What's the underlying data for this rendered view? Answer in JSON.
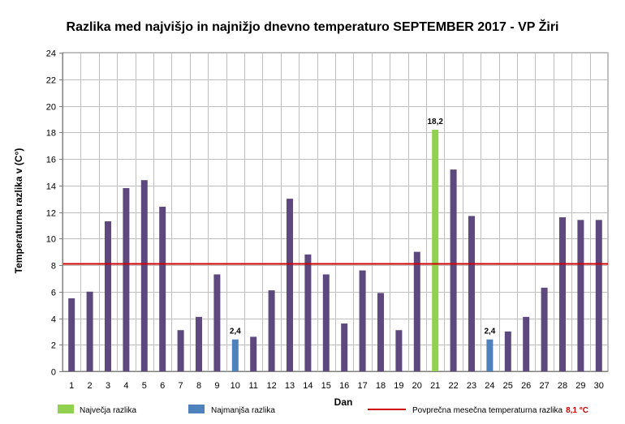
{
  "chart_data": {
    "type": "bar",
    "title": "Razlika med najvišjo in najnižjo dnevno temperaturo SEPTEMBER 2017 - VP Žiri",
    "xlabel": "Dan",
    "ylabel": "Temperaturna razlika v (C°)",
    "ylim": [
      0,
      24
    ],
    "yticks": [
      0,
      2,
      4,
      6,
      8,
      10,
      12,
      14,
      16,
      18,
      20,
      22,
      24
    ],
    "grid": true,
    "categories": [
      "1",
      "2",
      "3",
      "4",
      "5",
      "6",
      "7",
      "8",
      "9",
      "10",
      "11",
      "12",
      "13",
      "14",
      "15",
      "16",
      "17",
      "18",
      "19",
      "20",
      "21",
      "22",
      "23",
      "24",
      "25",
      "26",
      "27",
      "28",
      "29",
      "30"
    ],
    "values": [
      5.5,
      6.0,
      11.3,
      13.8,
      14.4,
      12.4,
      3.1,
      4.1,
      7.3,
      2.4,
      2.6,
      6.1,
      13.0,
      8.8,
      7.3,
      3.6,
      7.6,
      5.9,
      3.1,
      9.0,
      18.2,
      15.2,
      11.7,
      2.4,
      3.0,
      4.1,
      6.3,
      11.6,
      11.4,
      11.4
    ],
    "data_labels": [
      {
        "day": "10",
        "text": "2,4"
      },
      {
        "day": "21",
        "text": "18,2"
      },
      {
        "day": "24",
        "text": "2,4"
      }
    ],
    "highlights": {
      "max_days": [
        "21"
      ],
      "min_days": [
        "10",
        "24"
      ]
    },
    "average_line": {
      "value": 8.1
    },
    "colors": {
      "default_bar": "#5e497f",
      "max_bar": "#92d050",
      "min_bar": "#4f81bd",
      "average_line": "#cc0000",
      "grid": "#bfbfbf",
      "plot_border": "#7f7f7f"
    },
    "legend": {
      "placement": "bottom",
      "max_label": "Največja razlika",
      "min_label": "Najmanjša razlika",
      "avg_label": "Povprečna mesečna temperaturna razlika",
      "avg_value_text": "8,1 °C"
    }
  }
}
